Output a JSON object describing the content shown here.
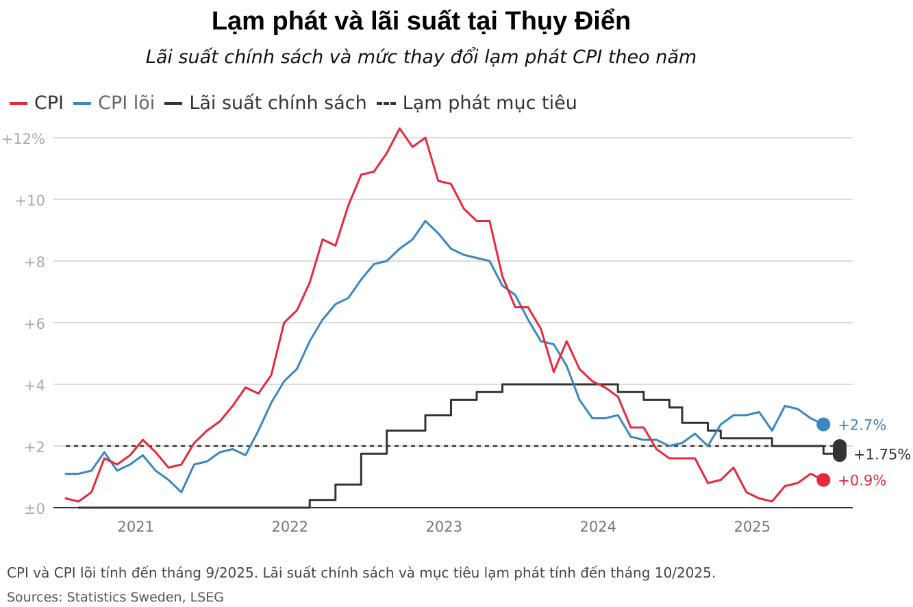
{
  "header": {
    "title": "Lạm phát và lãi suất tại Thụy Điển",
    "subtitle": "Lãi suất chính sách và mức thay đổi lạm phát CPI theo năm"
  },
  "legend": [
    {
      "label": "CPI",
      "color": "#e8283c",
      "style": "solid"
    },
    {
      "label": "CPI lõi",
      "color": "#3a87c2",
      "style": "solid"
    },
    {
      "label": "Lãi suất chính sách",
      "color": "#333333",
      "style": "solid"
    },
    {
      "label": "Lạm phát mục tiêu",
      "color": "#333333",
      "style": "dashed"
    }
  ],
  "footer": {
    "note": "CPI và CPI lõi tính đến tháng 9/2025. Lãi suất chính sách và mục tiêu lạm phát tính đến tháng 10/2025.",
    "source": "Sources: Statistics Sweden, LSEG"
  },
  "chart_data": {
    "type": "line",
    "title": "Lạm phát và lãi suất tại Thụy Điển",
    "subtitle": "Lãi suất chính sách và mức thay đổi lạm phát CPI theo năm",
    "xlabel": "",
    "ylabel": "",
    "x_tick_labels": [
      "2021",
      "2022",
      "2023",
      "2024",
      "2025"
    ],
    "y_tick_labels": [
      "±0",
      "+2",
      "+4",
      "+6",
      "+8",
      "+10",
      "+12%"
    ],
    "y_ticks": [
      0,
      2,
      4,
      6,
      8,
      10,
      12
    ],
    "ylim": [
      0,
      12
    ],
    "grid": true,
    "legend_position": "top-left",
    "series": [
      {
        "name": "CPI",
        "color": "#e8283c",
        "start": "2020-10",
        "values": [
          0.3,
          0.2,
          0.5,
          1.6,
          1.4,
          1.7,
          2.2,
          1.8,
          1.3,
          1.4,
          2.1,
          2.5,
          2.8,
          3.3,
          3.9,
          3.7,
          4.3,
          6.0,
          6.4,
          7.3,
          8.7,
          8.5,
          9.8,
          10.8,
          10.9,
          11.5,
          12.3,
          11.7,
          12.0,
          10.6,
          10.5,
          9.7,
          9.3,
          9.3,
          7.5,
          6.5,
          6.5,
          5.8,
          4.4,
          5.4,
          4.5,
          4.1,
          3.9,
          3.6,
          2.6,
          2.6,
          1.9,
          1.6,
          1.6,
          1.6,
          0.8,
          0.9,
          1.3,
          0.5,
          0.3,
          0.2,
          0.7,
          0.8,
          1.1,
          0.9
        ],
        "end_label": "+0.9%"
      },
      {
        "name": "CPI lõi",
        "color": "#3a87c2",
        "start": "2020-10",
        "values": [
          1.1,
          1.1,
          1.2,
          1.8,
          1.2,
          1.4,
          1.7,
          1.2,
          0.9,
          0.5,
          1.4,
          1.5,
          1.8,
          1.9,
          1.7,
          2.5,
          3.4,
          4.1,
          4.5,
          5.4,
          6.1,
          6.6,
          6.8,
          7.4,
          7.9,
          8.0,
          8.4,
          8.7,
          9.3,
          8.9,
          8.4,
          8.2,
          8.1,
          8.0,
          7.2,
          6.9,
          6.1,
          5.4,
          5.3,
          4.6,
          3.5,
          2.9,
          2.9,
          3.0,
          2.3,
          2.2,
          2.2,
          2.0,
          2.1,
          2.4,
          2.0,
          2.7,
          3.0,
          3.0,
          3.1,
          2.5,
          3.3,
          3.2,
          2.9,
          2.7
        ],
        "end_label": "+2.7%"
      },
      {
        "name": "Lãi suất chính sách",
        "color": "#333333",
        "step": true,
        "points": [
          [
            "2020-11",
            0
          ],
          [
            "2022-05",
            0.25
          ],
          [
            "2022-07",
            0.75
          ],
          [
            "2022-09",
            1.75
          ],
          [
            "2022-11",
            2.5
          ],
          [
            "2023-02",
            3.0
          ],
          [
            "2023-04",
            3.5
          ],
          [
            "2023-06",
            3.75
          ],
          [
            "2023-08",
            4.0
          ],
          [
            "2024-05",
            3.75
          ],
          [
            "2024-07",
            3.5
          ],
          [
            "2024-09",
            3.25
          ],
          [
            "2024-10",
            2.75
          ],
          [
            "2024-12",
            2.5
          ],
          [
            "2025-01",
            2.25
          ],
          [
            "2025-05",
            2.0
          ],
          [
            "2025-09",
            1.75
          ],
          [
            "2025-10",
            1.75
          ]
        ],
        "end_label": "+1.75%"
      },
      {
        "name": "Lạm phát mục tiêu",
        "color": "#333333",
        "dashed": true,
        "points": [
          [
            "2020-10",
            2.0
          ],
          [
            "2025-10",
            2.0
          ]
        ]
      }
    ]
  }
}
